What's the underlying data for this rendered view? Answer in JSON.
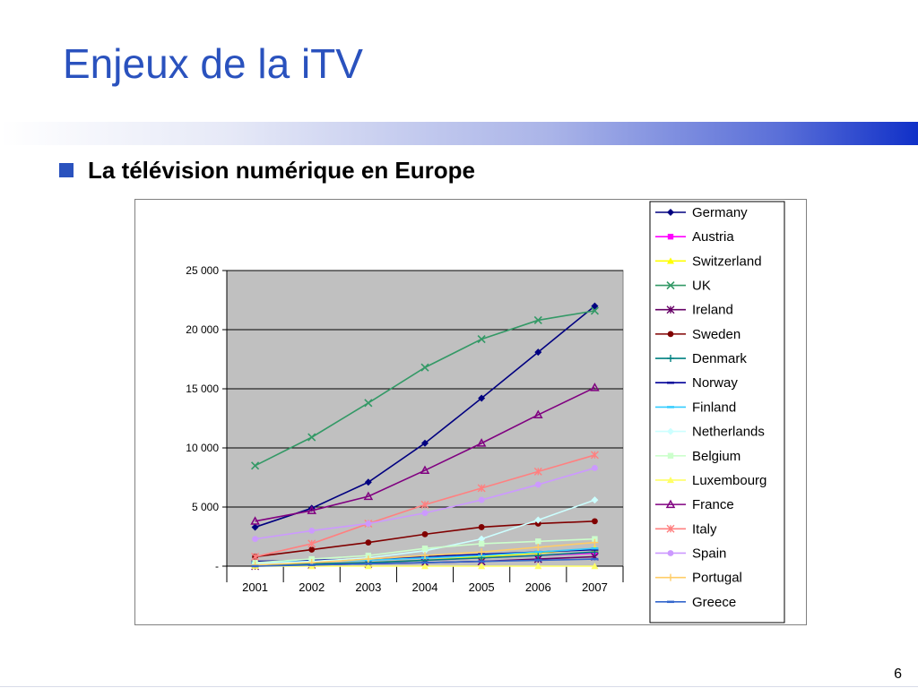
{
  "slide": {
    "title": "Enjeux de la iTV",
    "bullet": "La télévision numérique en Europe",
    "page_number": "6"
  },
  "colors": {
    "title": "#2a52be",
    "bullet_square": "#2a52be",
    "plot_background": "#c0c0c0"
  },
  "chart_data": {
    "type": "line",
    "title": "",
    "xlabel": "",
    "ylabel": "",
    "categories": [
      "2001",
      "2002",
      "2003",
      "2004",
      "2005",
      "2006",
      "2007"
    ],
    "ylim": [
      0,
      25000
    ],
    "yticks": [
      0,
      5000,
      10000,
      15000,
      20000,
      25000
    ],
    "ytick_labels": [
      "-",
      "5 000",
      "10 000",
      "15 000",
      "20 000",
      "25 000"
    ],
    "grid": true,
    "legend_position": "right",
    "series": [
      {
        "name": "Germany",
        "color": "#000080",
        "marker": "diamond",
        "values": [
          3300,
          4900,
          7100,
          10400,
          14200,
          18100,
          22000
        ]
      },
      {
        "name": "Austria",
        "color": "#ff00ff",
        "marker": "square",
        "values": [
          100,
          200,
          300,
          500,
          700,
          900,
          1100
        ]
      },
      {
        "name": "Switzerland",
        "color": "#ffff00",
        "marker": "triangle",
        "values": [
          100,
          200,
          300,
          500,
          800,
          1100,
          1500
        ]
      },
      {
        "name": "UK",
        "color": "#339966",
        "marker": "x",
        "values": [
          8500,
          10900,
          13800,
          16800,
          19200,
          20800,
          21600
        ]
      },
      {
        "name": "Ireland",
        "color": "#660066",
        "marker": "asterisk",
        "values": [
          0,
          100,
          200,
          300,
          400,
          600,
          800
        ]
      },
      {
        "name": "Sweden",
        "color": "#800000",
        "marker": "circle",
        "values": [
          800,
          1400,
          2000,
          2700,
          3300,
          3600,
          3800
        ]
      },
      {
        "name": "Denmark",
        "color": "#008080",
        "marker": "plus",
        "values": [
          100,
          200,
          300,
          500,
          700,
          900,
          1200
        ]
      },
      {
        "name": "Norway",
        "color": "#000099",
        "marker": "dash",
        "values": [
          400,
          500,
          600,
          800,
          1000,
          1200,
          1400
        ]
      },
      {
        "name": "Finland",
        "color": "#33ccff",
        "marker": "dash",
        "values": [
          300,
          400,
          500,
          700,
          900,
          1200,
          1500
        ]
      },
      {
        "name": "Netherlands",
        "color": "#ccffff",
        "marker": "diamond",
        "values": [
          200,
          400,
          700,
          1300,
          2300,
          3900,
          5600
        ]
      },
      {
        "name": "Belgium",
        "color": "#ccffcc",
        "marker": "square",
        "values": [
          300,
          600,
          900,
          1500,
          1900,
          2100,
          2300
        ]
      },
      {
        "name": "Luxembourg",
        "color": "#ffff66",
        "marker": "triangle",
        "values": [
          0,
          0,
          0,
          0,
          0,
          0,
          0
        ]
      },
      {
        "name": "France",
        "color": "#800080",
        "marker": "triangle-open",
        "values": [
          3800,
          4700,
          5900,
          8100,
          10400,
          12800,
          15100
        ]
      },
      {
        "name": "Italy",
        "color": "#ff8080",
        "marker": "asterisk",
        "values": [
          800,
          1900,
          3600,
          5200,
          6600,
          8000,
          9400
        ]
      },
      {
        "name": "Spain",
        "color": "#cc99ff",
        "marker": "circle",
        "values": [
          2300,
          3000,
          3600,
          4500,
          5600,
          6900,
          8300
        ]
      },
      {
        "name": "Portugal",
        "color": "#ffcc66",
        "marker": "plus",
        "values": [
          100,
          300,
          600,
          900,
          1200,
          1600,
          2000
        ]
      },
      {
        "name": "Greece",
        "color": "#3366cc",
        "marker": "dash",
        "values": [
          0,
          100,
          200,
          300,
          400,
          500,
          600
        ]
      }
    ]
  }
}
